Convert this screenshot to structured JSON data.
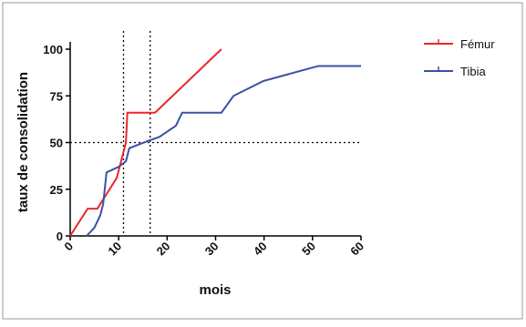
{
  "chart_data": {
    "type": "line",
    "x_label": "mois",
    "y_label": "taux de consolidation",
    "xlim": [
      0,
      60
    ],
    "xticks": [
      0,
      10,
      20,
      30,
      40,
      50,
      60
    ],
    "ylim": [
      0,
      100
    ],
    "yticks": [
      0,
      25,
      50,
      75,
      100
    ],
    "reference_lines": {
      "x": [
        11,
        16.5
      ],
      "y": [
        50
      ]
    },
    "legend": "right",
    "series": [
      {
        "name": "Fémur",
        "color": "#e8282b",
        "x": [
          0,
          3.6,
          5.6,
          9.6,
          11.5,
          11.8,
          17.5,
          31.2
        ],
        "values": [
          0,
          14.6,
          14.6,
          31,
          50,
          66,
          66,
          100
        ]
      },
      {
        "name": "Tibia",
        "color": "#3a52a4",
        "x": [
          3.4,
          5,
          6.2,
          6.8,
          7.5,
          10,
          11.5,
          12.2,
          16.2,
          18.4,
          21.8,
          23.1,
          31.2,
          33.7,
          39.9,
          51.2,
          60
        ],
        "values": [
          0,
          4.4,
          11,
          17,
          34,
          37,
          40,
          47,
          51,
          53,
          59,
          66,
          66,
          75,
          83,
          91,
          91
        ]
      }
    ]
  }
}
